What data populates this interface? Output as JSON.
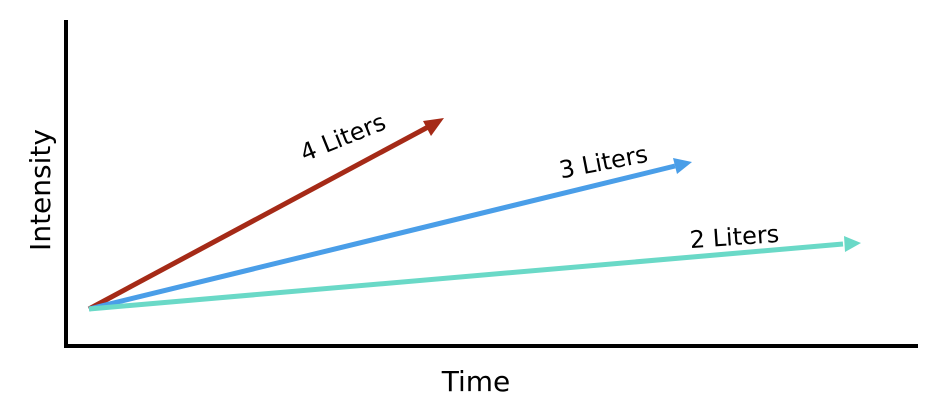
{
  "axes": {
    "x_label": "Time",
    "y_label": "Intensity"
  },
  "arrows": [
    {
      "label": "4 Liters",
      "color": "#a52a17"
    },
    {
      "label": "3 Liters",
      "color": "#4a9ee8"
    },
    {
      "label": "2 Liters",
      "color": "#6ad9c7"
    }
  ]
}
